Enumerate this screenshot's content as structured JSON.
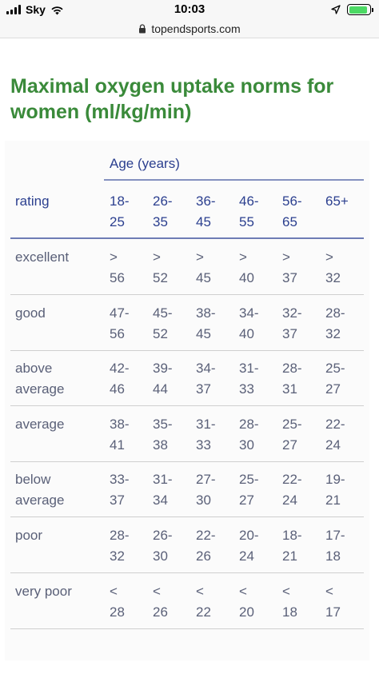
{
  "status_bar": {
    "carrier": "Sky",
    "time": "10:03",
    "battery_level": 0.9,
    "battery_color": "#4cd964"
  },
  "address_bar": {
    "url": "topendsports.com",
    "icon": "lock-icon"
  },
  "page": {
    "title": "Maximal oxygen uptake norms for women (ml/kg/min)",
    "title_color": "#3a8a3a",
    "accent_color": "#2b3f8f"
  },
  "table": {
    "age_header": "Age (years)",
    "rating_header": "rating",
    "age_groups": [
      "18-\n25",
      "26-\n35",
      "36-\n45",
      "46-\n55",
      "56-\n65",
      "65+"
    ],
    "rows": [
      {
        "rating": "excellent",
        "values": [
          ">\n56",
          ">\n52",
          ">\n45",
          ">\n40",
          ">\n37",
          ">\n32"
        ]
      },
      {
        "rating": "good",
        "values": [
          "47-\n56",
          "45-\n52",
          "38-\n45",
          "34-\n40",
          "32-\n37",
          "28-\n32"
        ]
      },
      {
        "rating": "above\naverage",
        "values": [
          "42-\n46",
          "39-\n44",
          "34-\n37",
          "31-\n33",
          "28-\n31",
          "25-\n27"
        ]
      },
      {
        "rating": "average",
        "values": [
          "38-\n41",
          "35-\n38",
          "31-\n33",
          "28-\n30",
          "25-\n27",
          "22-\n24"
        ]
      },
      {
        "rating": "below\naverage",
        "values": [
          "33-\n37",
          "31-\n34",
          "27-\n30",
          "25-\n27",
          "22-\n24",
          "19-\n21"
        ]
      },
      {
        "rating": "poor",
        "values": [
          "28-\n32",
          "26-\n30",
          "22-\n26",
          "20-\n24",
          "18-\n21",
          "17-\n18"
        ]
      },
      {
        "rating": "very poor",
        "values": [
          "<\n28",
          "<\n26",
          "<\n22",
          "<\n20",
          "<\n18",
          "<\n17"
        ]
      }
    ]
  }
}
